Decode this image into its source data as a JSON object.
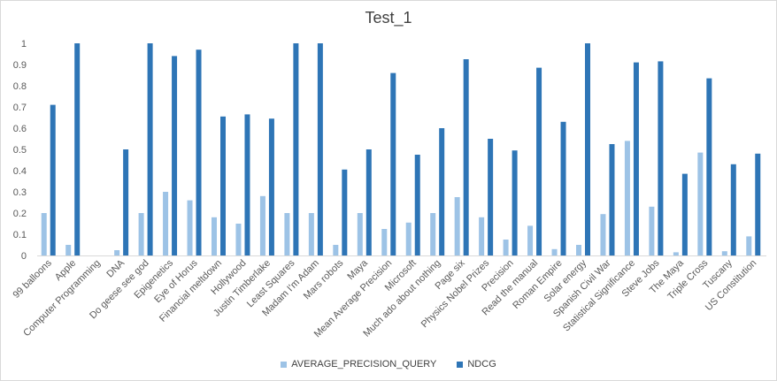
{
  "chart_data": {
    "type": "bar",
    "title": "Test_1",
    "xlabel": "",
    "ylabel": "",
    "ylim": [
      0,
      1
    ],
    "yticks": [
      "0",
      "0.1",
      "0.2",
      "0.3",
      "0.4",
      "0.5",
      "0.6",
      "0.7",
      "0.8",
      "0.9",
      "1"
    ],
    "grid": false,
    "legend_position": "bottom",
    "categories": [
      "99 balloons",
      "Apple",
      "Computer Programming",
      "DNA",
      "Do geese see god",
      "Epigenetics",
      "Eye of Horus",
      "Financial meltdown",
      "Hollywood",
      "Justin Timberlake",
      "Least Squares",
      "Madam I'm Adam",
      "Mars robots",
      "Maya",
      "Mean Average Precision",
      "Microsoft",
      "Much ado about nothing",
      "Page six",
      "Physics Nobel Prizes",
      "Precision",
      "Read the manual",
      "Roman Empire",
      "Solar energy",
      "Spanish Civil War",
      "Statistical Significance",
      "Steve Jobs",
      "The Maya",
      "Triple Cross",
      "Tuscany",
      "US Constitution"
    ],
    "series": [
      {
        "name": "AVERAGE_PRECISION_QUERY",
        "color": "#9dc3e6",
        "values": [
          0.2,
          0.05,
          0,
          0.025,
          0.2,
          0.3,
          0.26,
          0.18,
          0.15,
          0.28,
          0.2,
          0.2,
          0.05,
          0.2,
          0.125,
          0.155,
          0.2,
          0.275,
          0.18,
          0.075,
          0.14,
          0.03,
          0.05,
          0.195,
          0.54,
          0.23,
          0.015,
          0.485,
          0.02,
          0.09
        ]
      },
      {
        "name": "NDCG",
        "color": "#2e75b6",
        "values": [
          0.71,
          1.0,
          0,
          0.5,
          1.0,
          0.94,
          0.97,
          0.655,
          0.665,
          0.645,
          1.0,
          1.0,
          0.405,
          0.5,
          0.86,
          0.475,
          0.6,
          0.925,
          0.55,
          0.495,
          0.885,
          0.63,
          1.0,
          0.525,
          0.91,
          0.915,
          0.385,
          0.835,
          0.43,
          0.48
        ]
      }
    ]
  }
}
